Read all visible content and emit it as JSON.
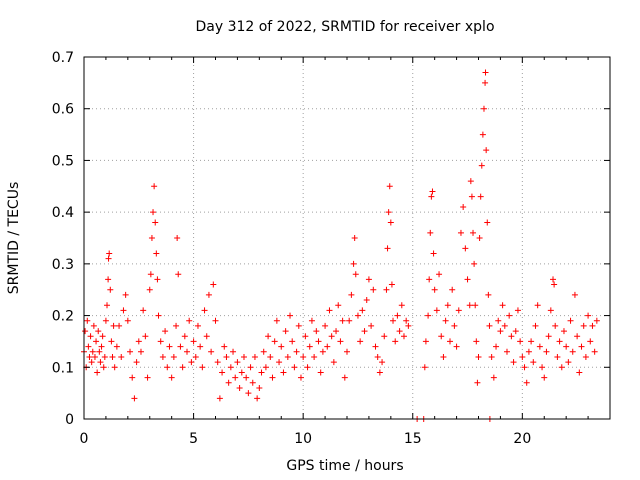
{
  "chart_data": {
    "type": "scatter",
    "title": "Day 312 of 2022, SRMTID for receiver xplo",
    "xlabel": "GPS time / hours",
    "ylabel": "SRMTID / TECUs",
    "xlim": [
      0,
      24
    ],
    "ylim": [
      0,
      0.7
    ],
    "xticks": [
      0,
      5,
      10,
      15,
      20
    ],
    "yticks": [
      0,
      0.1,
      0.2,
      0.3,
      0.4,
      0.5,
      0.6,
      0.7
    ],
    "xtick_labels": [
      "0",
      "5",
      "10",
      "15",
      "20"
    ],
    "ytick_labels": [
      "0",
      "0.1",
      "0.2",
      "0.3",
      "0.4",
      "0.5",
      "0.6",
      "0.7"
    ],
    "grid": true,
    "marker": "+",
    "marker_color": "#ff0000",
    "series": [
      {
        "name": "xplo",
        "points": [
          [
            0.0,
            0.13
          ],
          [
            0.05,
            0.17
          ],
          [
            0.1,
            0.1
          ],
          [
            0.15,
            0.19
          ],
          [
            0.2,
            0.14
          ],
          [
            0.25,
            0.12
          ],
          [
            0.3,
            0.16
          ],
          [
            0.35,
            0.11
          ],
          [
            0.4,
            0.13
          ],
          [
            0.45,
            0.18
          ],
          [
            0.5,
            0.12
          ],
          [
            0.55,
            0.15
          ],
          [
            0.6,
            0.09
          ],
          [
            0.65,
            0.17
          ],
          [
            0.7,
            0.13
          ],
          [
            0.75,
            0.11
          ],
          [
            0.8,
            0.14
          ],
          [
            0.85,
            0.16
          ],
          [
            0.9,
            0.1
          ],
          [
            0.95,
            0.12
          ],
          [
            1.0,
            0.19
          ],
          [
            1.05,
            0.22
          ],
          [
            1.1,
            0.27
          ],
          [
            1.12,
            0.31
          ],
          [
            1.15,
            0.32
          ],
          [
            1.2,
            0.25
          ],
          [
            1.25,
            0.15
          ],
          [
            1.3,
            0.12
          ],
          [
            1.35,
            0.18
          ],
          [
            1.4,
            0.1
          ],
          [
            1.5,
            0.14
          ],
          [
            1.6,
            0.18
          ],
          [
            1.7,
            0.12
          ],
          [
            1.8,
            0.21
          ],
          [
            1.9,
            0.24
          ],
          [
            2.0,
            0.19
          ],
          [
            2.1,
            0.13
          ],
          [
            2.2,
            0.08
          ],
          [
            2.3,
            0.04
          ],
          [
            2.4,
            0.11
          ],
          [
            2.5,
            0.15
          ],
          [
            2.6,
            0.13
          ],
          [
            2.7,
            0.21
          ],
          [
            2.8,
            0.16
          ],
          [
            2.9,
            0.08
          ],
          [
            3.0,
            0.25
          ],
          [
            3.05,
            0.28
          ],
          [
            3.1,
            0.35
          ],
          [
            3.15,
            0.4
          ],
          [
            3.2,
            0.45
          ],
          [
            3.25,
            0.38
          ],
          [
            3.3,
            0.32
          ],
          [
            3.35,
            0.27
          ],
          [
            3.4,
            0.2
          ],
          [
            3.5,
            0.15
          ],
          [
            3.6,
            0.12
          ],
          [
            3.7,
            0.17
          ],
          [
            3.8,
            0.1
          ],
          [
            3.9,
            0.14
          ],
          [
            4.0,
            0.08
          ],
          [
            4.1,
            0.12
          ],
          [
            4.2,
            0.18
          ],
          [
            4.25,
            0.35
          ],
          [
            4.3,
            0.28
          ],
          [
            4.4,
            0.14
          ],
          [
            4.5,
            0.1
          ],
          [
            4.6,
            0.16
          ],
          [
            4.7,
            0.13
          ],
          [
            4.8,
            0.19
          ],
          [
            4.9,
            0.11
          ],
          [
            5.0,
            0.15
          ],
          [
            5.1,
            0.12
          ],
          [
            5.2,
            0.18
          ],
          [
            5.3,
            0.14
          ],
          [
            5.4,
            0.1
          ],
          [
            5.5,
            0.21
          ],
          [
            5.6,
            0.16
          ],
          [
            5.7,
            0.24
          ],
          [
            5.8,
            0.13
          ],
          [
            5.9,
            0.26
          ],
          [
            6.0,
            0.19
          ],
          [
            6.1,
            0.11
          ],
          [
            6.2,
            0.04
          ],
          [
            6.3,
            0.09
          ],
          [
            6.4,
            0.14
          ],
          [
            6.5,
            0.12
          ],
          [
            6.6,
            0.07
          ],
          [
            6.7,
            0.1
          ],
          [
            6.8,
            0.13
          ],
          [
            6.9,
            0.08
          ],
          [
            7.0,
            0.11
          ],
          [
            7.1,
            0.06
          ],
          [
            7.2,
            0.09
          ],
          [
            7.3,
            0.12
          ],
          [
            7.4,
            0.08
          ],
          [
            7.5,
            0.05
          ],
          [
            7.6,
            0.1
          ],
          [
            7.7,
            0.07
          ],
          [
            7.8,
            0.12
          ],
          [
            7.9,
            0.04
          ],
          [
            8.0,
            0.06
          ],
          [
            8.1,
            0.09
          ],
          [
            8.2,
            0.13
          ],
          [
            8.3,
            0.1
          ],
          [
            8.4,
            0.16
          ],
          [
            8.5,
            0.12
          ],
          [
            8.6,
            0.08
          ],
          [
            8.7,
            0.15
          ],
          [
            8.8,
            0.19
          ],
          [
            8.9,
            0.11
          ],
          [
            9.0,
            0.14
          ],
          [
            9.1,
            0.09
          ],
          [
            9.2,
            0.17
          ],
          [
            9.3,
            0.12
          ],
          [
            9.4,
            0.2
          ],
          [
            9.5,
            0.15
          ],
          [
            9.6,
            0.1
          ],
          [
            9.7,
            0.13
          ],
          [
            9.8,
            0.18
          ],
          [
            9.9,
            0.08
          ],
          [
            10.0,
            0.12
          ],
          [
            10.1,
            0.16
          ],
          [
            10.2,
            0.1
          ],
          [
            10.3,
            0.14
          ],
          [
            10.4,
            0.19
          ],
          [
            10.5,
            0.12
          ],
          [
            10.6,
            0.17
          ],
          [
            10.7,
            0.15
          ],
          [
            10.8,
            0.09
          ],
          [
            10.9,
            0.13
          ],
          [
            11.0,
            0.18
          ],
          [
            11.1,
            0.14
          ],
          [
            11.2,
            0.21
          ],
          [
            11.3,
            0.16
          ],
          [
            11.4,
            0.11
          ],
          [
            11.5,
            0.17
          ],
          [
            11.6,
            0.22
          ],
          [
            11.7,
            0.15
          ],
          [
            11.8,
            0.19
          ],
          [
            11.9,
            0.08
          ],
          [
            12.0,
            0.13
          ],
          [
            12.1,
            0.19
          ],
          [
            12.2,
            0.24
          ],
          [
            12.3,
            0.3
          ],
          [
            12.35,
            0.35
          ],
          [
            12.4,
            0.28
          ],
          [
            12.5,
            0.2
          ],
          [
            12.6,
            0.15
          ],
          [
            12.7,
            0.21
          ],
          [
            12.8,
            0.17
          ],
          [
            12.9,
            0.23
          ],
          [
            13.0,
            0.27
          ],
          [
            13.1,
            0.18
          ],
          [
            13.2,
            0.25
          ],
          [
            13.3,
            0.14
          ],
          [
            13.4,
            0.12
          ],
          [
            13.5,
            0.09
          ],
          [
            13.6,
            0.11
          ],
          [
            13.7,
            0.16
          ],
          [
            13.8,
            0.25
          ],
          [
            13.85,
            0.33
          ],
          [
            13.9,
            0.4
          ],
          [
            13.95,
            0.45
          ],
          [
            14.0,
            0.38
          ],
          [
            14.05,
            0.26
          ],
          [
            14.1,
            0.19
          ],
          [
            14.2,
            0.15
          ],
          [
            14.3,
            0.2
          ],
          [
            14.4,
            0.17
          ],
          [
            14.5,
            0.22
          ],
          [
            14.6,
            0.16
          ],
          [
            14.7,
            0.19
          ],
          [
            14.8,
            0.18
          ],
          [
            15.2,
            0.0
          ],
          [
            15.5,
            0.0
          ],
          [
            15.55,
            0.1
          ],
          [
            15.6,
            0.15
          ],
          [
            15.7,
            0.2
          ],
          [
            15.75,
            0.27
          ],
          [
            15.8,
            0.36
          ],
          [
            15.85,
            0.43
          ],
          [
            15.9,
            0.44
          ],
          [
            15.95,
            0.32
          ],
          [
            16.0,
            0.25
          ],
          [
            16.1,
            0.21
          ],
          [
            16.2,
            0.28
          ],
          [
            16.3,
            0.16
          ],
          [
            16.4,
            0.12
          ],
          [
            16.5,
            0.19
          ],
          [
            16.6,
            0.22
          ],
          [
            16.7,
            0.15
          ],
          [
            16.8,
            0.25
          ],
          [
            16.9,
            0.18
          ],
          [
            17.0,
            0.14
          ],
          [
            17.1,
            0.21
          ],
          [
            17.2,
            0.36
          ],
          [
            17.3,
            0.41
          ],
          [
            17.4,
            0.33
          ],
          [
            17.5,
            0.27
          ],
          [
            17.6,
            0.22
          ],
          [
            17.65,
            0.46
          ],
          [
            17.7,
            0.43
          ],
          [
            17.75,
            0.36
          ],
          [
            17.8,
            0.3
          ],
          [
            17.85,
            0.22
          ],
          [
            17.9,
            0.15
          ],
          [
            17.95,
            0.07
          ],
          [
            18.0,
            0.12
          ],
          [
            18.05,
            0.35
          ],
          [
            18.1,
            0.43
          ],
          [
            18.15,
            0.49
          ],
          [
            18.2,
            0.55
          ],
          [
            18.25,
            0.6
          ],
          [
            18.3,
            0.65
          ],
          [
            18.32,
            0.67
          ],
          [
            18.35,
            0.52
          ],
          [
            18.4,
            0.38
          ],
          [
            18.45,
            0.24
          ],
          [
            18.5,
            0.18
          ],
          [
            18.52,
            0.0
          ],
          [
            18.6,
            0.12
          ],
          [
            18.7,
            0.08
          ],
          [
            18.8,
            0.14
          ],
          [
            18.9,
            0.19
          ],
          [
            19.0,
            0.17
          ],
          [
            19.1,
            0.22
          ],
          [
            19.2,
            0.18
          ],
          [
            19.3,
            0.13
          ],
          [
            19.4,
            0.2
          ],
          [
            19.5,
            0.16
          ],
          [
            19.6,
            0.11
          ],
          [
            19.7,
            0.17
          ],
          [
            19.8,
            0.21
          ],
          [
            19.9,
            0.15
          ],
          [
            20.0,
            0.12
          ],
          [
            20.1,
            0.1
          ],
          [
            20.2,
            0.07
          ],
          [
            20.3,
            0.13
          ],
          [
            20.4,
            0.15
          ],
          [
            20.5,
            0.11
          ],
          [
            20.6,
            0.18
          ],
          [
            20.7,
            0.22
          ],
          [
            20.8,
            0.14
          ],
          [
            20.9,
            0.1
          ],
          [
            21.0,
            0.08
          ],
          [
            21.1,
            0.13
          ],
          [
            21.2,
            0.16
          ],
          [
            21.3,
            0.21
          ],
          [
            21.4,
            0.27
          ],
          [
            21.45,
            0.26
          ],
          [
            21.5,
            0.18
          ],
          [
            21.6,
            0.12
          ],
          [
            21.7,
            0.15
          ],
          [
            21.8,
            0.1
          ],
          [
            21.9,
            0.17
          ],
          [
            22.0,
            0.14
          ],
          [
            22.1,
            0.11
          ],
          [
            22.2,
            0.19
          ],
          [
            22.3,
            0.13
          ],
          [
            22.4,
            0.24
          ],
          [
            22.5,
            0.16
          ],
          [
            22.6,
            0.09
          ],
          [
            22.7,
            0.14
          ],
          [
            22.8,
            0.18
          ],
          [
            22.9,
            0.12
          ],
          [
            23.0,
            0.2
          ],
          [
            23.1,
            0.15
          ],
          [
            23.2,
            0.18
          ],
          [
            23.3,
            0.13
          ],
          [
            23.4,
            0.19
          ]
        ]
      }
    ]
  }
}
